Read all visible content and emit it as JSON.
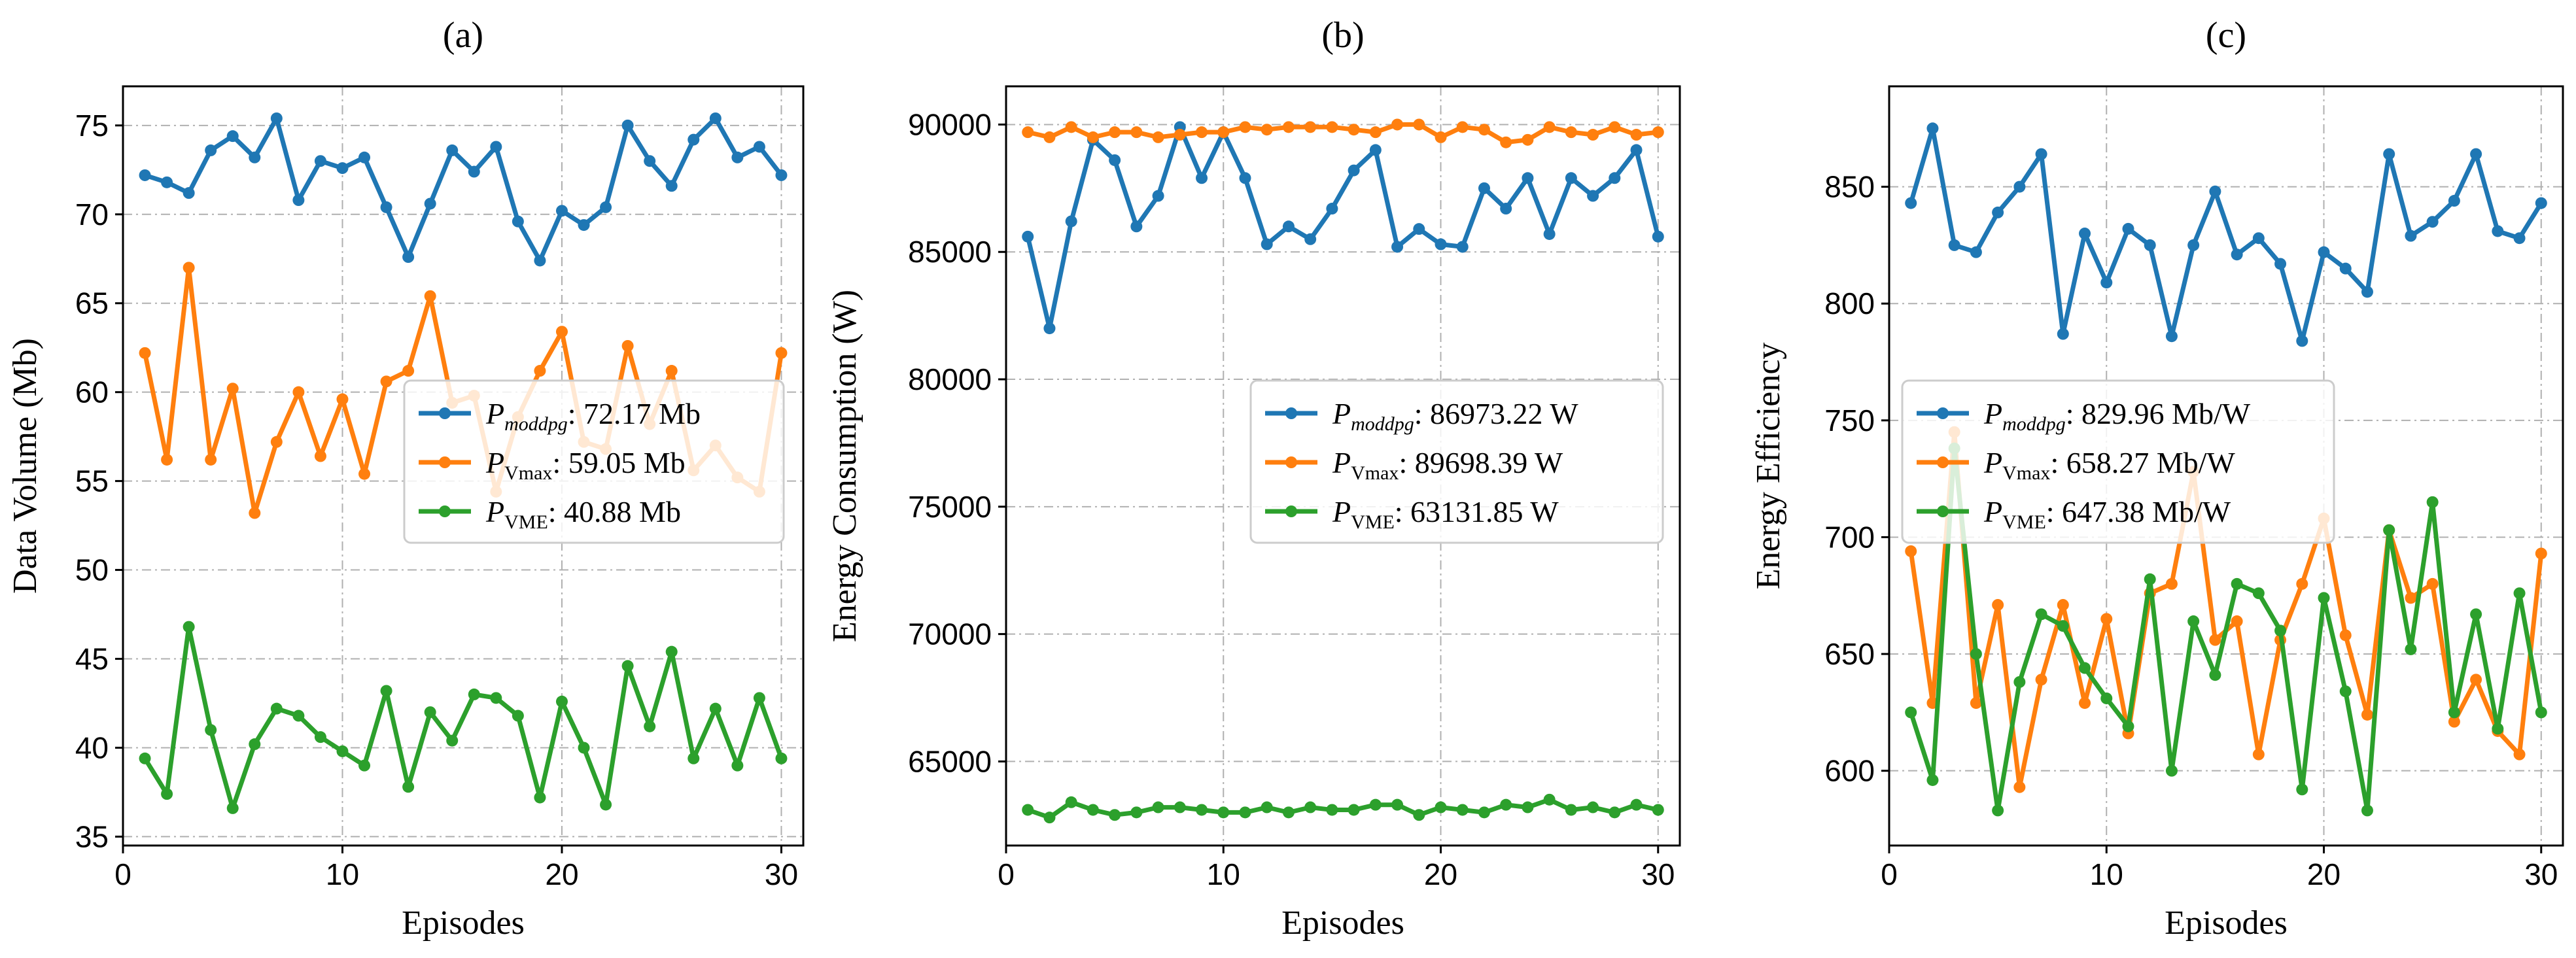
{
  "colors": {
    "moddpg": "#1f77b4",
    "vmax": "#ff7f0e",
    "vme": "#2ca02c",
    "grid": "#b0b0b0"
  },
  "chart_data": [
    {
      "type": "line",
      "title": "(a)",
      "xlabel": "Episodes",
      "ylabel": "Data Volume (Mb)",
      "xlim": [
        0,
        31
      ],
      "ylim": [
        34.5,
        77.2
      ],
      "xticks": [
        0,
        10,
        20,
        30
      ],
      "yticks": [
        35,
        40,
        45,
        50,
        55,
        60,
        65,
        70,
        75
      ],
      "grid": true,
      "legend_position": "center-right",
      "x": [
        1,
        2,
        3,
        4,
        5,
        6,
        7,
        8,
        9,
        10,
        11,
        12,
        13,
        14,
        15,
        16,
        17,
        18,
        19,
        20,
        21,
        22,
        23,
        24,
        25,
        26,
        27,
        28,
        29,
        30
      ],
      "series": [
        {
          "key": "moddpg",
          "legend_main": "P",
          "legend_sub": "moddpg",
          "legend_value": ": 72.17 Mb",
          "values": [
            72.2,
            71.8,
            71.2,
            73.6,
            74.4,
            73.2,
            75.4,
            70.8,
            73.0,
            72.6,
            73.2,
            70.4,
            67.6,
            70.6,
            73.6,
            72.4,
            73.8,
            69.6,
            67.4,
            70.2,
            69.4,
            70.4,
            75.0,
            73.0,
            71.6,
            74.2,
            75.4,
            73.2,
            73.8,
            72.2
          ]
        },
        {
          "key": "vmax",
          "legend_main": "P",
          "legend_sub": "Vmax",
          "legend_value": ": 59.05 Mb",
          "values": [
            62.2,
            56.2,
            67.0,
            56.2,
            60.2,
            53.2,
            57.2,
            60.0,
            56.4,
            59.6,
            55.4,
            60.6,
            61.2,
            65.4,
            59.4,
            59.8,
            54.4,
            58.6,
            61.2,
            63.4,
            57.2,
            56.8,
            62.6,
            58.2,
            61.2,
            55.6,
            57.0,
            55.2,
            54.4,
            62.2
          ]
        },
        {
          "key": "vme",
          "legend_main": "P",
          "legend_sub": "VME",
          "legend_value": ": 40.88 Mb",
          "values": [
            39.4,
            37.4,
            46.8,
            41.0,
            36.6,
            40.2,
            42.2,
            41.8,
            40.6,
            39.8,
            39.0,
            43.2,
            37.8,
            42.0,
            40.4,
            43.0,
            42.8,
            41.8,
            37.2,
            42.6,
            40.0,
            36.8,
            44.6,
            41.2,
            45.4,
            39.4,
            42.2,
            39.0,
            42.8,
            39.4
          ]
        }
      ]
    },
    {
      "type": "line",
      "title": "(b)",
      "xlabel": "Episodes",
      "ylabel": "Energy Consumption (W)",
      "xlim": [
        0,
        31
      ],
      "ylim": [
        61700,
        91500
      ],
      "xticks": [
        0,
        10,
        20,
        30
      ],
      "yticks": [
        65000,
        70000,
        75000,
        80000,
        85000,
        90000
      ],
      "grid": true,
      "legend_position": "center-right",
      "x": [
        1,
        2,
        3,
        4,
        5,
        6,
        7,
        8,
        9,
        10,
        11,
        12,
        13,
        14,
        15,
        16,
        17,
        18,
        19,
        20,
        21,
        22,
        23,
        24,
        25,
        26,
        27,
        28,
        29,
        30
      ],
      "series": [
        {
          "key": "moddpg",
          "legend_main": "P",
          "legend_sub": "moddpg",
          "legend_value": ": 86973.22 W",
          "values": [
            85600,
            82000,
            86200,
            89400,
            88600,
            86000,
            87200,
            89900,
            87900,
            89700,
            87900,
            85300,
            86000,
            85500,
            86700,
            88200,
            89000,
            85200,
            85900,
            85300,
            85200,
            87500,
            86700,
            87900,
            85700,
            87900,
            87200,
            87900,
            89000,
            85600
          ]
        },
        {
          "key": "vmax",
          "legend_main": "P",
          "legend_sub": "Vmax",
          "legend_value": ": 89698.39 W",
          "values": [
            89700,
            89500,
            89900,
            89500,
            89700,
            89700,
            89500,
            89600,
            89700,
            89700,
            89900,
            89800,
            89900,
            89900,
            89900,
            89800,
            89700,
            90000,
            90000,
            89500,
            89900,
            89800,
            89300,
            89400,
            89900,
            89700,
            89600,
            89900,
            89600,
            89700
          ]
        },
        {
          "key": "vme",
          "legend_main": "P",
          "legend_sub": "VME",
          "legend_value": ": 63131.85 W",
          "values": [
            63100,
            62800,
            63400,
            63100,
            62900,
            63000,
            63200,
            63200,
            63100,
            63000,
            63000,
            63200,
            63000,
            63200,
            63100,
            63100,
            63300,
            63300,
            62900,
            63200,
            63100,
            63000,
            63300,
            63200,
            63500,
            63100,
            63200,
            63000,
            63300,
            63100
          ]
        }
      ]
    },
    {
      "type": "line",
      "title": "(c)",
      "xlabel": "Episodes",
      "ylabel": "Energy Efficiency",
      "xlim": [
        0,
        31
      ],
      "ylim": [
        568,
        893
      ],
      "xticks": [
        0,
        10,
        20,
        30
      ],
      "yticks": [
        600,
        650,
        700,
        750,
        800,
        850
      ],
      "grid": true,
      "legend_position": "center-left",
      "x": [
        1,
        2,
        3,
        4,
        5,
        6,
        7,
        8,
        9,
        10,
        11,
        12,
        13,
        14,
        15,
        16,
        17,
        18,
        19,
        20,
        21,
        22,
        23,
        24,
        25,
        26,
        27,
        28,
        29,
        30
      ],
      "series": [
        {
          "key": "moddpg",
          "legend_main": "P",
          "legend_sub": "moddpg",
          "legend_value": ": 829.96 Mb/W",
          "values": [
            843,
            875,
            825,
            822,
            839,
            850,
            864,
            787,
            830,
            809,
            832,
            825,
            786,
            825,
            848,
            821,
            828,
            817,
            784,
            822,
            815,
            805,
            864,
            829,
            835,
            844,
            864,
            831,
            828,
            843
          ]
        },
        {
          "key": "vmax",
          "legend_main": "P",
          "legend_sub": "Vmax",
          "legend_value": ": 658.27 Mb/W",
          "values": [
            694,
            629,
            745,
            629,
            671,
            593,
            639,
            671,
            629,
            665,
            616,
            676,
            680,
            728,
            656,
            664,
            607,
            656,
            680,
            708,
            658,
            624,
            703,
            674,
            680,
            621,
            639,
            617,
            607,
            693
          ]
        },
        {
          "key": "vme",
          "legend_main": "P",
          "legend_sub": "VME",
          "legend_value": ": 647.38 Mb/W",
          "values": [
            625,
            596,
            738,
            650,
            583,
            638,
            667,
            662,
            644,
            631,
            619,
            682,
            600,
            664,
            641,
            680,
            676,
            660,
            592,
            674,
            634,
            583,
            703,
            652,
            715,
            625,
            667,
            618,
            676,
            625
          ]
        }
      ]
    }
  ]
}
